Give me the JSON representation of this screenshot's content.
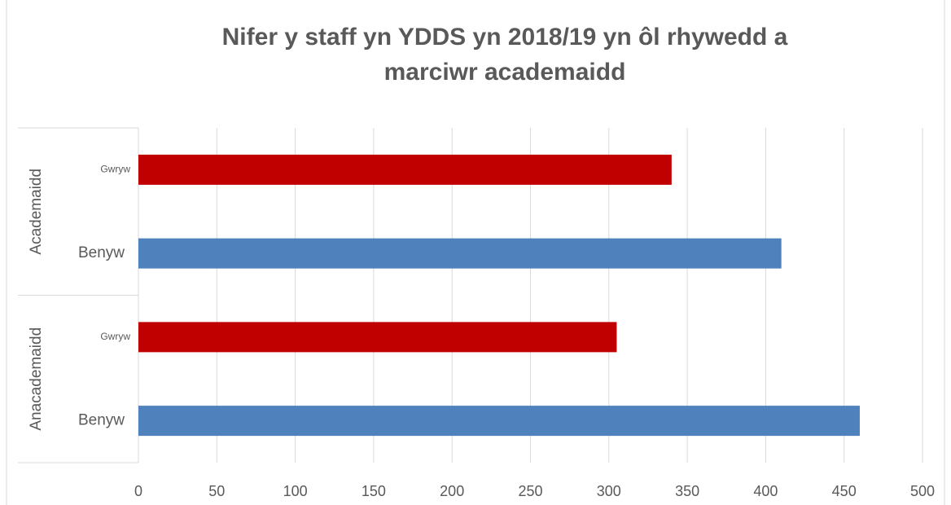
{
  "chart_data": {
    "type": "bar",
    "orientation": "horizontal",
    "title": [
      "Nifer y staff yn YDDS yn 2018/19 yn ôl rhywedd a",
      "marciwr academaidd"
    ],
    "groups": [
      {
        "name": "Academaidd",
        "categories": [
          "Gwryw",
          "Benyw"
        ],
        "values": [
          340,
          410
        ]
      },
      {
        "name": "Anacademaidd",
        "categories": [
          "Gwryw",
          "Benyw"
        ],
        "values": [
          305,
          460
        ]
      }
    ],
    "colors": [
      "#c00000",
      "#4f81bd"
    ],
    "xlim": [
      0,
      500
    ],
    "xticks": [
      0,
      50,
      100,
      150,
      200,
      250,
      300,
      350,
      400,
      450,
      500
    ],
    "grid": true
  }
}
